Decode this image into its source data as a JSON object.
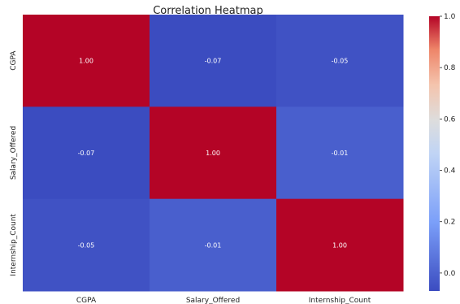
{
  "chart_data": {
    "type": "heatmap",
    "title": "Correlation Heatmap",
    "xlabel": "",
    "ylabel": "",
    "rows": [
      "CGPA",
      "Salary_Offered",
      "Internship_Count"
    ],
    "columns": [
      "CGPA",
      "Salary_Offered",
      "Internship_Count"
    ],
    "values": [
      [
        1.0,
        -0.07,
        -0.05
      ],
      [
        -0.07,
        1.0,
        -0.01
      ],
      [
        -0.05,
        -0.01,
        1.0
      ]
    ],
    "cell_labels": [
      [
        "1.00",
        "-0.07",
        "-0.05"
      ],
      [
        "-0.07",
        "1.00",
        "-0.01"
      ],
      [
        "-0.05",
        "-0.01",
        "1.00"
      ]
    ],
    "colormap": "coolwarm",
    "vmin": -0.07,
    "vmax": 1.0,
    "colorbar": {
      "ticks": [
        0.0,
        0.2,
        0.4,
        0.6,
        0.8,
        1.0
      ],
      "tick_labels": [
        "0.0",
        "0.2",
        "0.4",
        "0.6",
        "0.8",
        "1.0"
      ],
      "placement": "right"
    }
  }
}
